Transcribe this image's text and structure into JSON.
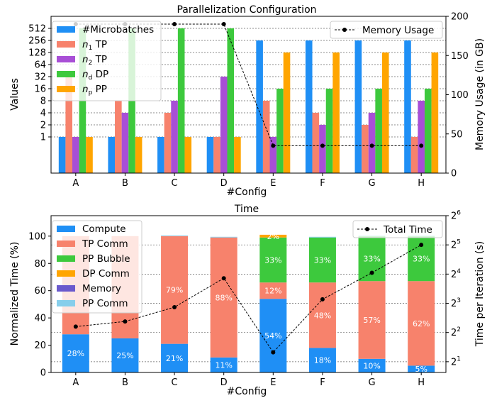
{
  "chart_data": [
    {
      "type": "bar",
      "title": "Parallelization Configuration",
      "xlabel": "#Config",
      "ylabel": "Values",
      "y2label": "Memory Usage (in GB)",
      "yscale": "log2",
      "ylim": [
        0.125,
        1024
      ],
      "y2lim": [
        0,
        200
      ],
      "grid": true,
      "categories": [
        "A",
        "B",
        "C",
        "D",
        "E",
        "F",
        "G",
        "H"
      ],
      "yticks": [
        1,
        2,
        4,
        8,
        16,
        32,
        64,
        128,
        256,
        512
      ],
      "yticklabels": [
        "1",
        "2",
        "4",
        "8",
        "16",
        "32",
        "64",
        "128",
        "256",
        "512"
      ],
      "y2ticks": [
        0,
        50,
        100,
        150,
        200
      ],
      "y2ticklabels": [
        "0",
        "50",
        "100",
        "150",
        "200"
      ],
      "legend_position": "upper-left",
      "line_legend_position": "upper-right",
      "series": [
        {
          "name": "#Microbatches",
          "color": "#1f8ff5",
          "values": [
            1,
            1,
            1,
            1,
            256,
            256,
            256,
            256
          ]
        },
        {
          "name": "n1 TP",
          "legend_base": "n",
          "legend_sub": "1",
          "legend_rest": " TP",
          "color": "#f7826c",
          "values": [
            32,
            8,
            4,
            1,
            8,
            4,
            2,
            1
          ]
        },
        {
          "name": "n2 TP",
          "legend_base": "n",
          "legend_sub": "2",
          "legend_rest": " TP",
          "color": "#a84fd6",
          "values": [
            1,
            4,
            8,
            32,
            1,
            2,
            4,
            8
          ]
        },
        {
          "name": "nd DP",
          "legend_base": "n",
          "legend_sub": "d",
          "legend_rest": " DP",
          "color": "#3dc93d",
          "values": [
            512,
            512,
            512,
            512,
            16,
            16,
            16,
            16
          ]
        },
        {
          "name": "np PP",
          "legend_base": "n",
          "legend_sub": "p",
          "legend_rest": " PP",
          "color": "#ffa500",
          "values": [
            1,
            1,
            1,
            1,
            128,
            128,
            128,
            128
          ]
        }
      ],
      "line_series": {
        "name": "Memory Usage",
        "axis": "right",
        "color": "#000000",
        "values": [
          190,
          190,
          190,
          190,
          35,
          35,
          35,
          35
        ]
      }
    },
    {
      "type": "bar",
      "stacked": true,
      "title": "Time",
      "xlabel": "#Config",
      "ylabel": "Normalized Time (%)",
      "y2label": "Time per Iteration (s)",
      "ylim": [
        0,
        115
      ],
      "y2scale": "log2",
      "y2lim": [
        1.55,
        64
      ],
      "grid": true,
      "categories": [
        "A",
        "B",
        "C",
        "D",
        "E",
        "F",
        "G",
        "H"
      ],
      "yticks": [
        0,
        20,
        40,
        60,
        80,
        100
      ],
      "yticklabels": [
        "0",
        "20",
        "40",
        "60",
        "80",
        "100"
      ],
      "y2ticks": [
        2,
        4,
        8,
        16,
        32,
        64
      ],
      "y2tick_base": "2",
      "y2tick_exponents": [
        "1",
        "2",
        "3",
        "4",
        "5",
        "6"
      ],
      "legend_position": "upper-left",
      "line_legend_position": "upper-right",
      "series": [
        {
          "name": "Compute",
          "color": "#1f8ff5",
          "values": [
            28,
            25,
            21,
            11,
            54,
            18,
            10,
            5
          ],
          "labels": [
            "28%",
            "25%",
            "21%",
            "11%",
            "54%",
            "18%",
            "10%",
            "5%"
          ]
        },
        {
          "name": "TP Comm",
          "color": "#f7826c",
          "values": [
            72,
            75,
            79,
            88,
            12,
            48,
            57,
            62
          ],
          "labels": [
            "",
            "",
            "79%",
            "88%",
            "12%",
            "48%",
            "57%",
            "62%"
          ]
        },
        {
          "name": "PP Bubble",
          "color": "#3dc93d",
          "values": [
            0,
            0,
            0,
            0,
            33,
            33,
            33,
            33
          ],
          "labels": [
            "",
            "",
            "",
            "",
            "33%",
            "33%",
            "33%",
            "33%"
          ]
        },
        {
          "name": "DP Comm",
          "color": "#ffa500",
          "values": [
            0,
            0,
            0,
            0,
            2,
            0,
            0,
            0
          ],
          "labels": [
            "",
            "",
            "",
            "",
            "2%",
            "",
            "",
            ""
          ]
        },
        {
          "name": "Memory",
          "color": "#6a5acd",
          "values": [
            0,
            0,
            0,
            0,
            0,
            0,
            0,
            0
          ],
          "labels": [
            "",
            "",
            "",
            "",
            "",
            "",
            "",
            ""
          ]
        },
        {
          "name": "PP Comm",
          "color": "#87ceeb",
          "values": [
            0,
            0,
            0.5,
            0.5,
            0,
            0.5,
            0.5,
            0.5
          ],
          "labels": [
            "",
            "",
            "",
            "",
            "",
            "",
            "",
            ""
          ]
        }
      ],
      "line_series": {
        "name": "Total Time",
        "axis": "right",
        "color": "#000000",
        "values": [
          4.6,
          5.2,
          7.3,
          14.5,
          2.5,
          8.8,
          16.5,
          32
        ]
      }
    }
  ]
}
